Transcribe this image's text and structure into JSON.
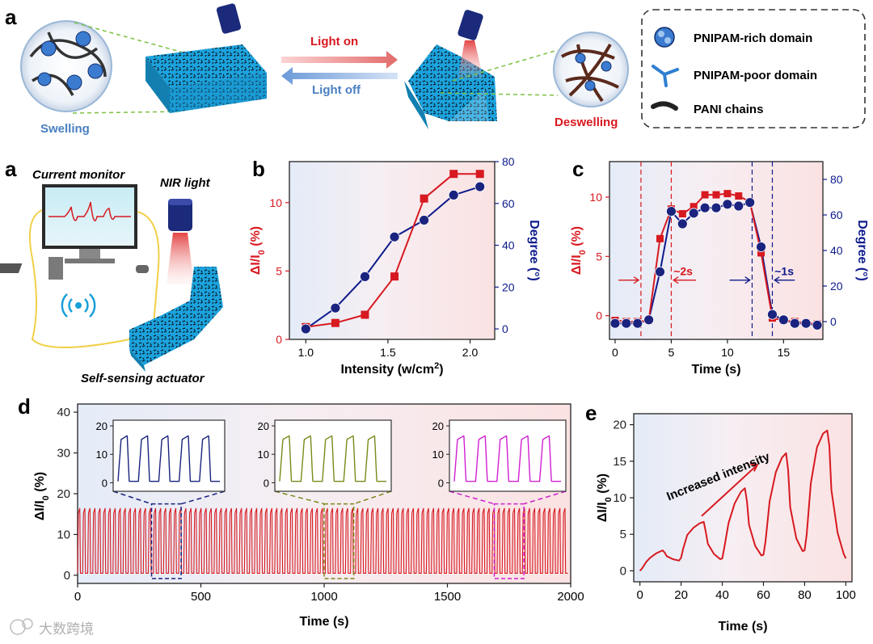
{
  "colors": {
    "red": "#d71920",
    "navy": "#0d1a8c",
    "navy_marker": "#1a237e",
    "blue_arrow": "#5b8fd9",
    "actuator": "#1aa0d8",
    "green_dash": "#7cc043",
    "insets": [
      "#1a237e",
      "#7a8a1a",
      "#d020d0"
    ]
  },
  "schematic": {
    "panel_label": "a",
    "light_on": "Light on",
    "light_off": "Light off",
    "swelling": "Swelling",
    "deswelling": "Deswelling",
    "legend": [
      "PNIPAM-rich domain",
      "PNIPAM-poor domain",
      "PANI chains"
    ]
  },
  "setup": {
    "panel_label": "a",
    "current_monitor": "Current monitor",
    "nir_light": "NIR light",
    "self_sensing": "Self-sensing actuator"
  },
  "watermark": "大数跨境",
  "chart_data": [
    {
      "id": "b",
      "type": "line",
      "panel_label": "b",
      "xlabel": "Intensity (w/cm",
      "xlabel_sup": "2",
      "xlabel_tail": ")",
      "ylabel_left": "ΔI/I",
      "ylabel_left_sub": "0",
      "ylabel_left_tail": " (%)",
      "ylabel_right": "Degree (°)",
      "xlim": [
        0.9,
        2.15
      ],
      "ylim_left": [
        0,
        13
      ],
      "ylim_right": [
        -5,
        80
      ],
      "xticks": [
        1.0,
        1.5,
        2.0
      ],
      "xtick_labels": [
        "1.0",
        "1.5",
        "2.0"
      ],
      "yticks_left": [
        0,
        5,
        10
      ],
      "yticks_right": [
        0,
        20,
        40,
        60,
        80
      ],
      "series": [
        {
          "name": "ΔI/I0",
          "axis": "left",
          "marker": "square",
          "x": [
            1.0,
            1.18,
            1.36,
            1.54,
            1.72,
            1.9,
            2.06
          ],
          "y": [
            0.9,
            1.2,
            1.8,
            4.6,
            10.3,
            12.1,
            12.1
          ]
        },
        {
          "name": "Degree",
          "axis": "right",
          "marker": "circle",
          "x": [
            1.0,
            1.18,
            1.36,
            1.54,
            1.72,
            1.9,
            2.06
          ],
          "y": [
            0,
            10,
            25,
            44,
            52,
            64,
            68
          ]
        }
      ]
    },
    {
      "id": "c",
      "type": "line",
      "panel_label": "c",
      "xlabel": "Time (s)",
      "ylabel_left": "ΔI/I",
      "ylabel_left_sub": "0",
      "ylabel_left_tail": " (%)",
      "ylabel_right": "Degree (°)",
      "xlim": [
        -0.5,
        18.5
      ],
      "ylim_left": [
        -2,
        13
      ],
      "ylim_right": [
        -10,
        90
      ],
      "xticks": [
        0,
        5,
        10,
        15
      ],
      "yticks_left": [
        0,
        5,
        10
      ],
      "yticks_right": [
        0,
        20,
        40,
        60,
        80
      ],
      "vlines_red": [
        2.3,
        5.0
      ],
      "vlines_blue": [
        12.2,
        14.0
      ],
      "annotations": [
        "~2s",
        "~1s"
      ],
      "series": [
        {
          "name": "ΔI/I0",
          "axis": "left",
          "marker": "square",
          "x": [
            0,
            1,
            2,
            3,
            4,
            5,
            6,
            7,
            8,
            9,
            10,
            11,
            12,
            13,
            14,
            15,
            16,
            17,
            18
          ],
          "y": [
            -0.4,
            -0.5,
            -0.5,
            -0.4,
            6.5,
            9.0,
            8.6,
            9.2,
            10.2,
            10.2,
            10.3,
            10.1,
            9.6,
            5.3,
            -0.2,
            -0.4,
            -0.5,
            -0.6,
            -0.7
          ]
        },
        {
          "name": "Degree",
          "axis": "right",
          "marker": "circle",
          "x": [
            0,
            1,
            2,
            3,
            4,
            5,
            6,
            7,
            8,
            9,
            10,
            11,
            12,
            13,
            14,
            15,
            16,
            17,
            18
          ],
          "y": [
            -1,
            -1,
            -1,
            1,
            28,
            62,
            55,
            61,
            64,
            64,
            66,
            65,
            67,
            42,
            4,
            1,
            -1,
            -1,
            -2
          ]
        }
      ]
    },
    {
      "id": "d",
      "type": "line",
      "panel_label": "d",
      "xlabel": "Time (s)",
      "ylabel": "ΔI/I",
      "ylabel_sub": "0",
      "ylabel_tail": " (%)",
      "xlim": [
        0,
        2000
      ],
      "ylim": [
        -2,
        42
      ],
      "xticks": [
        0,
        500,
        1000,
        1500,
        2000
      ],
      "yticks": [
        0,
        10,
        20,
        30,
        40
      ],
      "signal": {
        "period_s": 20.5,
        "min": 0.5,
        "max": 16.5,
        "cycles": 97
      },
      "zoom_windows": [
        [
          300,
          420
        ],
        [
          1000,
          1120
        ],
        [
          1690,
          1810
        ]
      ],
      "insets": {
        "yticks": [
          0,
          10,
          20
        ],
        "ylim": [
          -3,
          22
        ],
        "cycles": 5
      }
    },
    {
      "id": "e",
      "type": "line",
      "panel_label": "e",
      "xlabel": "Time (s)",
      "ylabel": "ΔI/I",
      "ylabel_sub": "0",
      "ylabel_tail": " (%)",
      "xlim": [
        -3,
        103
      ],
      "ylim": [
        -1.5,
        21.5
      ],
      "xticks": [
        0,
        20,
        40,
        60,
        80,
        100
      ],
      "yticks": [
        0,
        5,
        10,
        15,
        20
      ],
      "annotation": "Increased intensity",
      "x": [
        0,
        1,
        3,
        5,
        8,
        11,
        12,
        13,
        16,
        19,
        20,
        21,
        23,
        26,
        29,
        31,
        32,
        33,
        36,
        39,
        40,
        41,
        43,
        46,
        49,
        51,
        52,
        53,
        56,
        59,
        60,
        61,
        63,
        66,
        69,
        71,
        72,
        73,
        76,
        79,
        80,
        81,
        83,
        86,
        89,
        91,
        92,
        93,
        96,
        99,
        100
      ],
      "y": [
        0,
        0.3,
        1.2,
        1.8,
        2.4,
        2.8,
        2.5,
        2.0,
        1.6,
        1.4,
        1.8,
        3.0,
        4.9,
        5.9,
        6.5,
        6.7,
        5.3,
        3.7,
        2.3,
        1.6,
        1.7,
        3.2,
        6.5,
        9.2,
        10.8,
        11.3,
        9.5,
        6.3,
        3.4,
        2.1,
        2.2,
        4.0,
        9.5,
        13.5,
        15.5,
        16.1,
        13.8,
        8.7,
        4.4,
        2.7,
        2.8,
        5.0,
        12.0,
        16.9,
        18.8,
        19.2,
        17.1,
        11.1,
        5.2,
        2.3,
        1.7
      ]
    }
  ]
}
